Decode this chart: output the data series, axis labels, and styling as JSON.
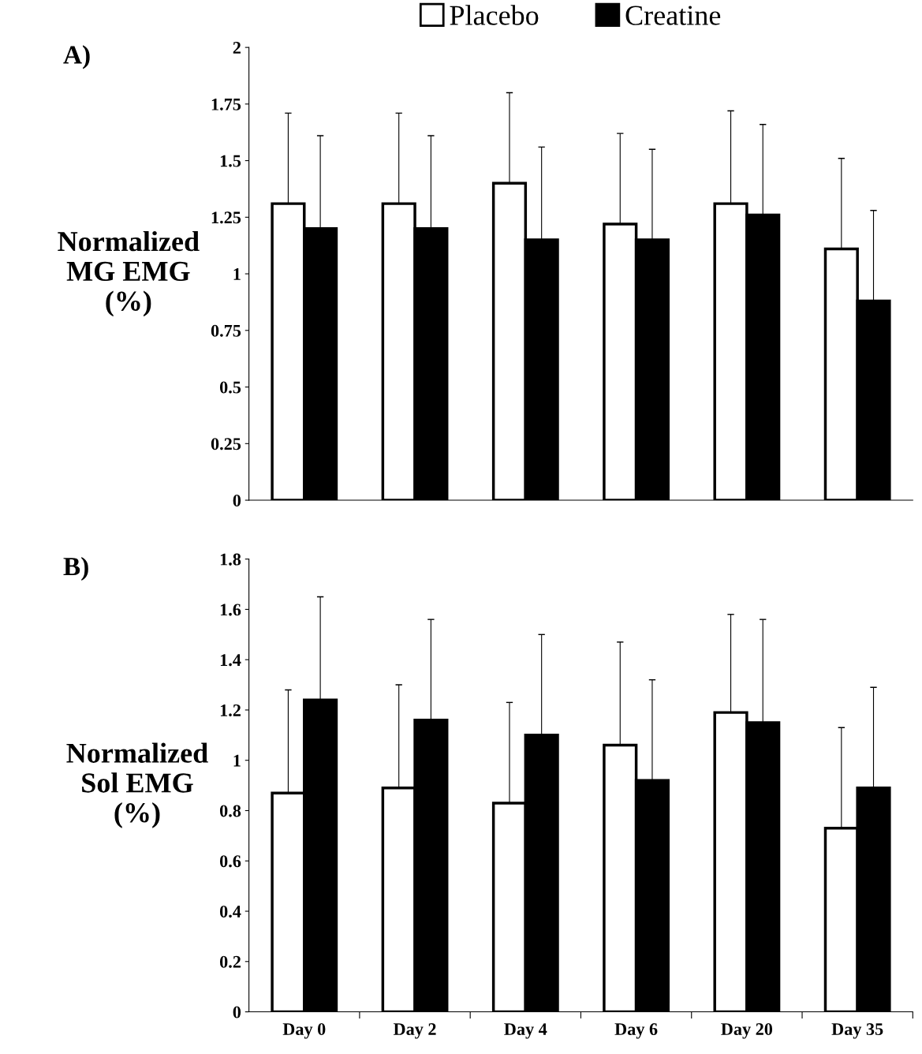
{
  "chart_data": [
    {
      "type": "bar",
      "title": "A)",
      "ylabel": "Normalized\nMG EMG\n(%)",
      "categories": [
        null,
        null,
        null,
        null,
        null,
        null
      ],
      "tick_labels": "y",
      "legend": "top right",
      "grid": false,
      "series": [
        {
          "name": "Placebo",
          "color": "#ffffff",
          "values": [
            1.31,
            1.31,
            1.4,
            1.22,
            1.31,
            1.11
          ],
          "errors": [
            0.4,
            0.4,
            0.4,
            0.4,
            0.41,
            0.4
          ]
        },
        {
          "name": "Creatine",
          "color": "#000000",
          "values": [
            1.2,
            1.2,
            1.15,
            1.15,
            1.26,
            0.88
          ],
          "errors": [
            0.41,
            0.41,
            0.41,
            0.4,
            0.4,
            0.4
          ]
        }
      ],
      "ylim": [
        0,
        2
      ],
      "yticks": [
        0,
        0.25,
        0.5,
        0.75,
        1,
        1.25,
        1.5,
        1.75,
        2
      ]
    },
    {
      "type": "bar",
      "title": "B)",
      "ylabel": "Normalized\nSol EMG\n(%)",
      "categories": [
        "Day 0",
        "Day 2",
        "Day 4",
        "Day 6",
        "Day 20",
        "Day 35"
      ],
      "grid": false,
      "series": [
        {
          "color": "#ffffff",
          "values": [
            0.87,
            0.89,
            0.83,
            1.06,
            1.19,
            0.73
          ],
          "errors": [
            0.41,
            0.41,
            0.4,
            0.41,
            0.39,
            0.4
          ]
        },
        {
          "color": "#000000",
          "values": [
            1.24,
            1.16,
            1.1,
            0.92,
            1.15,
            0.89
          ],
          "errors": [
            0.41,
            0.4,
            0.4,
            0.4,
            0.41,
            0.4
          ]
        }
      ],
      "ylim": [
        0,
        1.8
      ],
      "yticks": [
        0,
        0.2,
        0.4,
        0.6,
        0.8,
        1,
        1.2,
        1.4,
        1.6,
        1.8
      ]
    }
  ]
}
